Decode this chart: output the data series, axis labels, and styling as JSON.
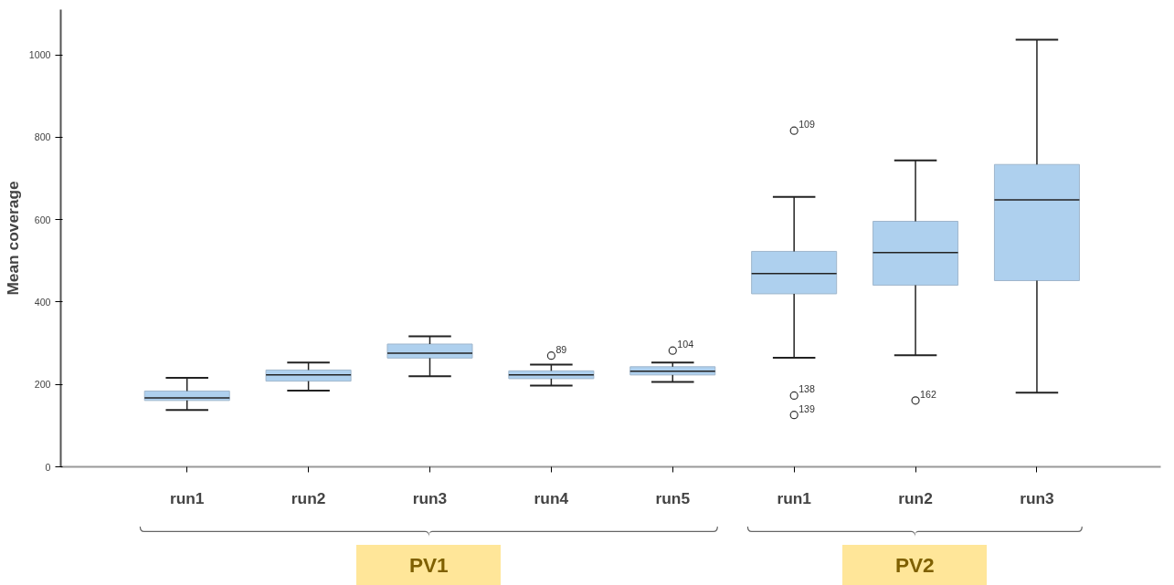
{
  "chart_data": {
    "type": "box",
    "ylabel": "Mean coverage",
    "categories": [
      "run1",
      "run2",
      "run3",
      "run4",
      "run5",
      "run1",
      "run2",
      "run3"
    ],
    "color": "#aed0ee",
    "boxes": [
      {
        "low": 138,
        "q1": 161,
        "median": 167,
        "q3": 184,
        "high": 216
      },
      {
        "low": 185,
        "q1": 208,
        "median": 223,
        "q3": 235,
        "high": 253
      },
      {
        "low": 220,
        "q1": 264,
        "median": 276,
        "q3": 298,
        "high": 317
      },
      {
        "low": 197,
        "q1": 214,
        "median": 223,
        "q3": 233,
        "high": 248,
        "outliers": [
          270
        ]
      },
      {
        "low": 206,
        "q1": 223,
        "median": 232,
        "q3": 243,
        "high": 253,
        "outliers": [
          282
        ]
      },
      {
        "low": 265,
        "q1": 420,
        "median": 469,
        "q3": 523,
        "high": 655,
        "outliers": [
          816,
          173,
          126
        ]
      },
      {
        "low": 271,
        "q1": 441,
        "median": 520,
        "q3": 596,
        "high": 744,
        "outliers": [
          161
        ]
      },
      {
        "low": 180,
        "q1": 452,
        "median": 648,
        "q3": 734,
        "high": 1037
      }
    ],
    "ylim": [
      0,
      1110
    ],
    "yticks": [
      0,
      200,
      400,
      600,
      800,
      1000
    ],
    "annotations": [
      "89",
      "104",
      "109",
      "138",
      "139",
      "162",
      "PV1",
      "PV2"
    ]
  }
}
